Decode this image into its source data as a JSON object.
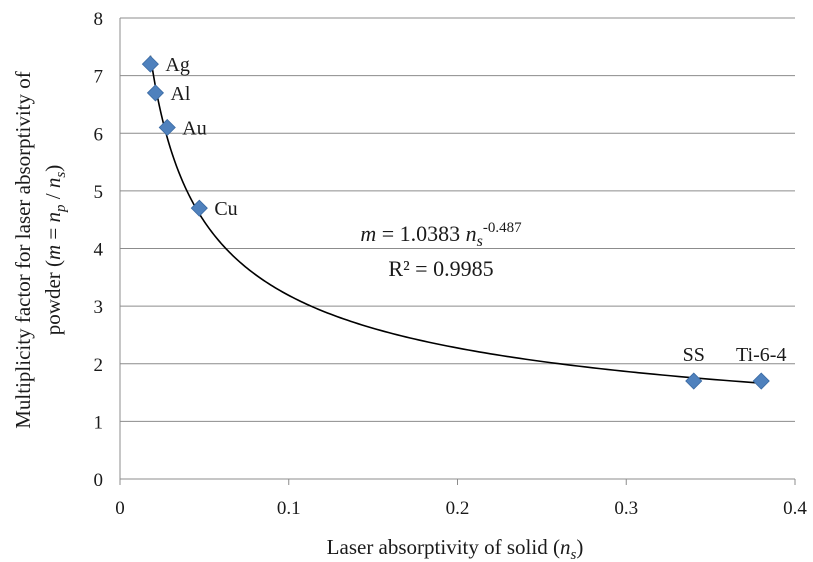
{
  "chart_data": {
    "type": "scatter",
    "title": "",
    "xlabel": {
      "prefix": "Laser absorptivity of solid (",
      "sym": "n",
      "sub": "s",
      "suffix": ")"
    },
    "ylabel": {
      "line1": "Multiplicity factor for laser absorptivity of",
      "line2_prefix": "powder (",
      "m": "m",
      "eq": " = ",
      "np": "n",
      "np_sub": "p",
      "slash": " / ",
      "ns": "n",
      "ns_sub": "s",
      "line2_suffix": ")"
    },
    "xlim": [
      0,
      0.4
    ],
    "ylim": [
      0,
      8
    ],
    "xticks": [
      "0",
      "0.1",
      "0.2",
      "0.3",
      "0.4"
    ],
    "yticks": [
      "0",
      "1",
      "2",
      "3",
      "4",
      "5",
      "6",
      "7",
      "8"
    ],
    "grid": "horizontal",
    "marker": "diamond",
    "marker_color": "#4f81bd",
    "points": [
      {
        "label": "Ag",
        "x": 0.018,
        "y": 7.2
      },
      {
        "label": "Al",
        "x": 0.021,
        "y": 6.7
      },
      {
        "label": "Au",
        "x": 0.028,
        "y": 6.1
      },
      {
        "label": "Cu",
        "x": 0.047,
        "y": 4.7
      },
      {
        "label": "SS",
        "x": 0.34,
        "y": 1.7
      },
      {
        "label": "Ti-6-4",
        "x": 0.38,
        "y": 1.7
      }
    ],
    "trendline": {
      "type": "power",
      "coef": 1.0383,
      "exponent": -0.487,
      "equation": {
        "m": "m",
        "eq_text": " = 1.0383 ",
        "n": "n",
        "sub": "s",
        "exp": "-0.487"
      },
      "r2_text": "R² = 0.9985"
    }
  }
}
